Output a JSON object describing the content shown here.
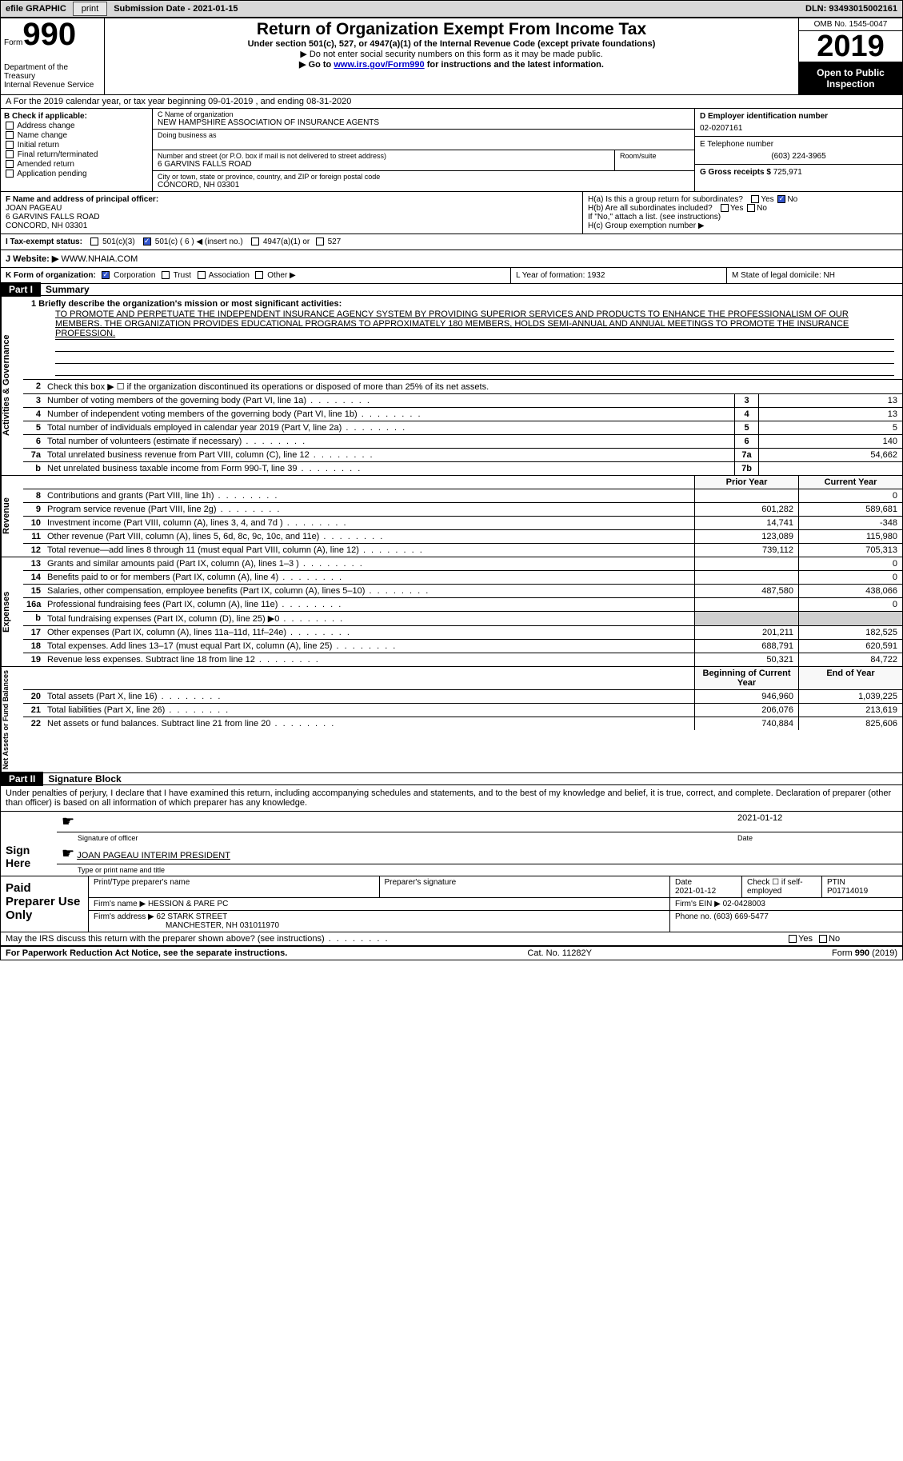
{
  "topbar": {
    "efile": "efile GRAPHIC",
    "print": "print",
    "submission": "Submission Date - 2021-01-15",
    "dln": "DLN: 93493015002161"
  },
  "header": {
    "form_word": "Form",
    "form_no": "990",
    "title": "Return of Organization Exempt From Income Tax",
    "sub1": "Under section 501(c), 527, or 4947(a)(1) of the Internal Revenue Code (except private foundations)",
    "sub2": "▶ Do not enter social security numbers on this form as it may be made public.",
    "goto_prefix": "▶ Go to ",
    "goto_link": "www.irs.gov/Form990",
    "goto_suffix": " for instructions and the latest information.",
    "dept": "Department of the Treasury\nInternal Revenue Service",
    "omb": "OMB No. 1545-0047",
    "year": "2019",
    "open": "Open to Public Inspection"
  },
  "lineA": "A For the 2019 calendar year, or tax year beginning 09-01-2019   , and ending 08-31-2020",
  "B": {
    "title": "B Check if applicable:",
    "items": [
      "Address change",
      "Name change",
      "Initial return",
      "Final return/terminated",
      "Amended return",
      "Application pending"
    ]
  },
  "C": {
    "name_label": "C Name of organization",
    "name": "NEW HAMPSHIRE ASSOCIATION OF INSURANCE AGENTS",
    "dba_label": "Doing business as",
    "street_label": "Number and street (or P.O. box if mail is not delivered to street address)",
    "street": "6 GARVINS FALLS ROAD",
    "room_label": "Room/suite",
    "city_label": "City or town, state or province, country, and ZIP or foreign postal code",
    "city": "CONCORD, NH  03301"
  },
  "D": {
    "ein_label": "D Employer identification number",
    "ein": "02-0207161",
    "phone_label": "E Telephone number",
    "phone": "(603) 224-3965",
    "gross_label": "G Gross receipts $",
    "gross": "725,971"
  },
  "F": {
    "label": "F  Name and address of principal officer:",
    "name": "JOAN PAGEAU",
    "addr1": "6 GARVINS FALLS ROAD",
    "addr2": "CONCORD, NH  03301"
  },
  "H": {
    "a": "H(a)  Is this a group return for subordinates?",
    "b": "H(b)  Are all subordinates included?",
    "note": "If \"No,\" attach a list. (see instructions)",
    "c": "H(c)  Group exemption number ▶"
  },
  "I": {
    "label": "I  Tax-exempt status:",
    "opt1": "501(c)(3)",
    "opt2": "501(c) ( 6 ) ◀ (insert no.)",
    "opt3": "4947(a)(1) or",
    "opt4": "527"
  },
  "J": {
    "label": "J  Website: ▶",
    "val": "WWW.NHAIA.COM"
  },
  "K": {
    "label": "K Form of organization:",
    "corp": "Corporation",
    "trust": "Trust",
    "assoc": "Association",
    "other": "Other ▶"
  },
  "L": {
    "text": "L Year of formation: 1932"
  },
  "M": {
    "text": "M State of legal domicile: NH"
  },
  "part1": {
    "hdr": "Part I",
    "title": "Summary"
  },
  "mission": {
    "intro": "1   Briefly describe the organization's mission or most significant activities:",
    "text": "TO PROMOTE AND PERPETUATE THE INDEPENDENT INSURANCE AGENCY SYSTEM BY PROVIDING SUPERIOR SERVICES AND PRODUCTS TO ENHANCE THE PROFESSIONALISM OF OUR MEMBERS. THE ORGANIZATION PROVIDES EDUCATIONAL PROGRAMS TO APPROXIMATELY 180 MEMBERS, HOLDS SEMI-ANNUAL AND ANNUAL MEETINGS TO PROMOTE THE INSURANCE PROFESSION."
  },
  "gov": {
    "l2": "Check this box ▶ ☐  if the organization discontinued its operations or disposed of more than 25% of its net assets.",
    "rows": [
      {
        "n": "3",
        "d": "Number of voting members of the governing body (Part VI, line 1a)",
        "b": "3",
        "v": "13"
      },
      {
        "n": "4",
        "d": "Number of independent voting members of the governing body (Part VI, line 1b)",
        "b": "4",
        "v": "13"
      },
      {
        "n": "5",
        "d": "Total number of individuals employed in calendar year 2019 (Part V, line 2a)",
        "b": "5",
        "v": "5"
      },
      {
        "n": "6",
        "d": "Total number of volunteers (estimate if necessary)",
        "b": "6",
        "v": "140"
      },
      {
        "n": "7a",
        "d": "Total unrelated business revenue from Part VIII, column (C), line 12",
        "b": "7a",
        "v": "54,662"
      },
      {
        "n": "b",
        "d": "Net unrelated business taxable income from Form 990-T, line 39",
        "b": "7b",
        "v": ""
      }
    ]
  },
  "rev_hdr": {
    "prior": "Prior Year",
    "curr": "Current Year"
  },
  "revenue": [
    {
      "n": "8",
      "d": "Contributions and grants (Part VIII, line 1h)",
      "p": "",
      "c": "0"
    },
    {
      "n": "9",
      "d": "Program service revenue (Part VIII, line 2g)",
      "p": "601,282",
      "c": "589,681"
    },
    {
      "n": "10",
      "d": "Investment income (Part VIII, column (A), lines 3, 4, and 7d )",
      "p": "14,741",
      "c": "-348"
    },
    {
      "n": "11",
      "d": "Other revenue (Part VIII, column (A), lines 5, 6d, 8c, 9c, 10c, and 11e)",
      "p": "123,089",
      "c": "115,980"
    },
    {
      "n": "12",
      "d": "Total revenue—add lines 8 through 11 (must equal Part VIII, column (A), line 12)",
      "p": "739,112",
      "c": "705,313"
    }
  ],
  "expenses": [
    {
      "n": "13",
      "d": "Grants and similar amounts paid (Part IX, column (A), lines 1–3 )",
      "p": "",
      "c": "0"
    },
    {
      "n": "14",
      "d": "Benefits paid to or for members (Part IX, column (A), line 4)",
      "p": "",
      "c": "0"
    },
    {
      "n": "15",
      "d": "Salaries, other compensation, employee benefits (Part IX, column (A), lines 5–10)",
      "p": "487,580",
      "c": "438,066"
    },
    {
      "n": "16a",
      "d": "Professional fundraising fees (Part IX, column (A), line 11e)",
      "p": "",
      "c": "0"
    },
    {
      "n": "b",
      "d": "Total fundraising expenses (Part IX, column (D), line 25) ▶0",
      "p": "shade",
      "c": "shade"
    },
    {
      "n": "17",
      "d": "Other expenses (Part IX, column (A), lines 11a–11d, 11f–24e)",
      "p": "201,211",
      "c": "182,525"
    },
    {
      "n": "18",
      "d": "Total expenses. Add lines 13–17 (must equal Part IX, column (A), line 25)",
      "p": "688,791",
      "c": "620,591"
    },
    {
      "n": "19",
      "d": "Revenue less expenses. Subtract line 18 from line 12",
      "p": "50,321",
      "c": "84,722"
    }
  ],
  "net_hdr": {
    "prior": "Beginning of Current Year",
    "curr": "End of Year"
  },
  "netassets": [
    {
      "n": "20",
      "d": "Total assets (Part X, line 16)",
      "p": "946,960",
      "c": "1,039,225"
    },
    {
      "n": "21",
      "d": "Total liabilities (Part X, line 26)",
      "p": "206,076",
      "c": "213,619"
    },
    {
      "n": "22",
      "d": "Net assets or fund balances. Subtract line 21 from line 20",
      "p": "740,884",
      "c": "825,606"
    }
  ],
  "part2": {
    "hdr": "Part II",
    "title": "Signature Block"
  },
  "sig": {
    "intro": "Under penalties of perjury, I declare that I have examined this return, including accompanying schedules and statements, and to the best of my knowledge and belief, it is true, correct, and complete. Declaration of preparer (other than officer) is based on all information of which preparer has any knowledge.",
    "sign_here": "Sign Here",
    "sig_officer": "Signature of officer",
    "date": "2021-01-12",
    "date_label": "Date",
    "name": "JOAN PAGEAU  INTERIM PRESIDENT",
    "name_label": "Type or print name and title"
  },
  "paid": {
    "title": "Paid Preparer Use Only",
    "h1": "Print/Type preparer's name",
    "h2": "Preparer's signature",
    "h3": "Date",
    "h4": "Check ☐ if self-employed",
    "h5": "PTIN",
    "date": "2021-01-12",
    "ptin": "P01714019",
    "firm_label": "Firm's name   ▶",
    "firm": "HESSION & PARE PC",
    "firm_ein_label": "Firm's EIN ▶",
    "firm_ein": "02-0428003",
    "addr_label": "Firm's address ▶",
    "addr1": "62 STARK STREET",
    "addr2": "MANCHESTER, NH  031011970",
    "phone_label": "Phone no.",
    "phone": "(603) 669-5477"
  },
  "may_discuss": "May the IRS discuss this return with the preparer shown above? (see instructions)",
  "footer": {
    "left": "For Paperwork Reduction Act Notice, see the separate instructions.",
    "mid": "Cat. No. 11282Y",
    "right": "Form 990 (2019)"
  },
  "labels": {
    "vert_gov": "Activities & Governance",
    "vert_rev": "Revenue",
    "vert_exp": "Expenses",
    "vert_net": "Net Assets or Fund Balances",
    "yes": "Yes",
    "no": "No"
  }
}
